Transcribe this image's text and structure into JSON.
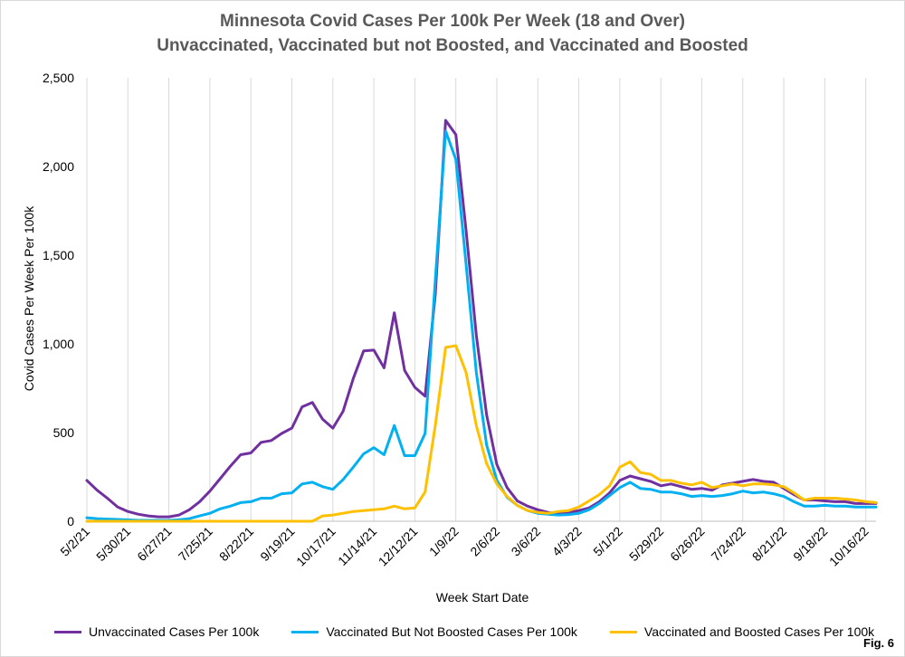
{
  "figure_label": "Fig. 6",
  "chart_data": {
    "type": "line",
    "title": "Minnesota Covid Cases Per 100k Per Week (18 and Over)",
    "subtitle": "Unvaccinated, Vaccinated but not Boosted, and Vaccinated and Boosted",
    "xlabel": "Week Start Date",
    "ylabel": "Covid Cases Per Week Per 100k",
    "ylim": [
      0,
      2500
    ],
    "yticks": [
      0,
      500,
      1000,
      1500,
      2000,
      2500
    ],
    "ytick_labels": [
      "0",
      "500",
      "1,000",
      "1,500",
      "2,000",
      "2,500"
    ],
    "grid": "vertical",
    "legend_position": "bottom",
    "x": [
      "5/2/21",
      "5/9/21",
      "5/16/21",
      "5/23/21",
      "5/30/21",
      "6/6/21",
      "6/13/21",
      "6/20/21",
      "6/27/21",
      "7/4/21",
      "7/11/21",
      "7/18/21",
      "7/25/21",
      "8/1/21",
      "8/8/21",
      "8/15/21",
      "8/22/21",
      "8/29/21",
      "9/5/21",
      "9/12/21",
      "9/19/21",
      "9/26/21",
      "10/3/21",
      "10/10/21",
      "10/17/21",
      "10/24/21",
      "10/31/21",
      "11/7/21",
      "11/14/21",
      "11/21/21",
      "11/28/21",
      "12/5/21",
      "12/12/21",
      "12/19/21",
      "12/26/21",
      "1/2/22",
      "1/9/22",
      "1/16/22",
      "1/23/22",
      "1/30/22",
      "2/6/22",
      "2/13/22",
      "2/20/22",
      "2/27/22",
      "3/6/22",
      "3/13/22",
      "3/20/22",
      "3/27/22",
      "4/3/22",
      "4/10/22",
      "4/17/22",
      "4/24/22",
      "5/1/22",
      "5/8/22",
      "5/15/22",
      "5/22/22",
      "5/29/22",
      "6/5/22",
      "6/12/22",
      "6/19/22",
      "6/26/22",
      "7/3/22",
      "7/10/22",
      "7/17/22",
      "7/24/22",
      "7/31/22",
      "8/7/22",
      "8/14/22",
      "8/21/22",
      "8/28/22",
      "9/4/22",
      "9/11/22",
      "9/18/22",
      "9/25/22",
      "10/2/22",
      "10/9/22",
      "10/16/22",
      "10/23/22"
    ],
    "xtick_labels": [
      "5/2/21",
      "5/30/21",
      "6/27/21",
      "7/25/21",
      "8/22/21",
      "9/19/21",
      "10/17/21",
      "11/14/21",
      "12/12/21",
      "1/9/22",
      "2/6/22",
      "3/6/22",
      "4/3/22",
      "5/1/22",
      "5/29/22",
      "6/26/22",
      "7/24/22",
      "8/21/22",
      "9/18/22",
      "10/16/22"
    ],
    "series": [
      {
        "name": "Unvaccinated Cases Per 100k",
        "color": "#7030a0",
        "values": [
          230,
          175,
          130,
          80,
          55,
          40,
          30,
          25,
          25,
          35,
          65,
          110,
          170,
          240,
          310,
          375,
          385,
          445,
          455,
          495,
          525,
          645,
          670,
          575,
          525,
          620,
          805,
          960,
          965,
          865,
          1175,
          850,
          755,
          705,
          1280,
          2260,
          2180,
          1640,
          1050,
          600,
          320,
          190,
          115,
          85,
          65,
          50,
          45,
          50,
          60,
          75,
          110,
          160,
          230,
          255,
          240,
          225,
          200,
          210,
          195,
          180,
          185,
          175,
          205,
          215,
          225,
          235,
          225,
          220,
          185,
          150,
          120,
          120,
          115,
          110,
          110,
          100,
          100,
          100
        ]
      },
      {
        "name": "Vaccinated But Not Boosted Cases Per 100k",
        "color": "#00b0f0",
        "values": [
          20,
          15,
          12,
          10,
          8,
          5,
          5,
          5,
          5,
          8,
          15,
          30,
          45,
          70,
          85,
          105,
          110,
          130,
          130,
          155,
          160,
          210,
          220,
          195,
          180,
          235,
          305,
          380,
          415,
          375,
          540,
          370,
          370,
          495,
          1360,
          2200,
          2040,
          1450,
          840,
          430,
          230,
          135,
          90,
          60,
          45,
          40,
          35,
          38,
          45,
          65,
          100,
          145,
          190,
          220,
          185,
          180,
          165,
          165,
          155,
          140,
          145,
          140,
          145,
          155,
          170,
          160,
          165,
          155,
          140,
          110,
          85,
          85,
          90,
          85,
          85,
          80,
          80,
          80
        ]
      },
      {
        "name": "Vaccinated and Boosted Cases Per 100k",
        "color": "#ffc000",
        "values": [
          0,
          0,
          0,
          0,
          0,
          0,
          0,
          0,
          0,
          0,
          0,
          0,
          0,
          0,
          0,
          0,
          0,
          0,
          0,
          0,
          0,
          0,
          0,
          30,
          35,
          45,
          55,
          60,
          65,
          70,
          85,
          70,
          75,
          165,
          540,
          980,
          990,
          840,
          540,
          325,
          210,
          140,
          90,
          60,
          50,
          45,
          55,
          60,
          80,
          115,
          150,
          200,
          305,
          335,
          275,
          265,
          230,
          230,
          215,
          205,
          220,
          190,
          200,
          210,
          200,
          210,
          210,
          205,
          195,
          160,
          120,
          130,
          130,
          130,
          125,
          120,
          110,
          105
        ]
      }
    ]
  }
}
